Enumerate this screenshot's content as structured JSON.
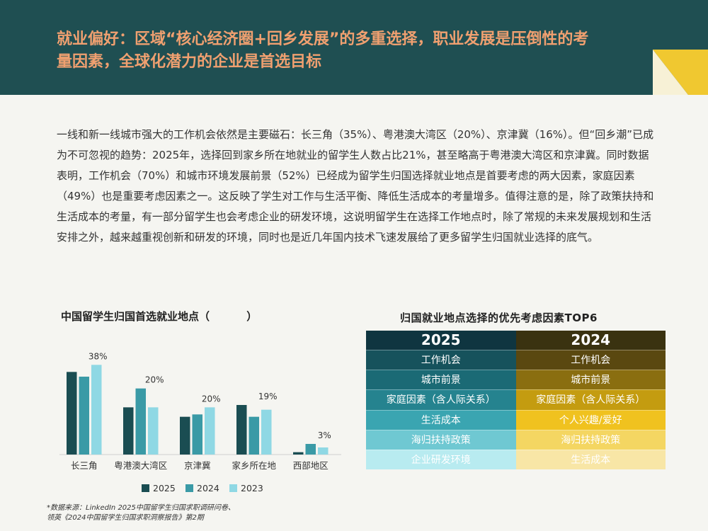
{
  "header": {
    "title": "就业偏好：区域“核心经济圈+回乡发展”的多重选择，职业发展是压倒性的考量因素，全球化潜力的企业是首选目标"
  },
  "paragraph": "一线和新一线城市强大的工作机会依然是主要磁石：长三角（35%）、粤港澳大湾区（20%）、京津冀（16%）。但“回乡潮”已成为不可忽视的趋势：2025年，选择回到家乡所在地就业的留学生人数占比21%，甚至略高于粤港澳大湾区和京津冀。同时数据表明，工作机会（70%）和城市环境发展前景（52%）已经成为留学生归国选择就业地点是首要考虑的两大因素，家庭因素（49%）也是重要考虑因素之一。这反映了学生对工作与生活平衡、降低生活成本的考量增多。值得注意的是，除了政策扶持和生活成本的考量，有一部分留学生也会考虑企业的研发环境，这说明留学生在选择工作地点时，除了常规的未来发展规划和生活安排之外，越来越重视创新和研发的环境，同时也是近几年国内技术飞速发展给了更多留学生归国就业选择的底气。",
  "colors": {
    "header_bg": "#1f4f52",
    "title": "#f0a070",
    "series_2025": "#1a4d52",
    "series_2024": "#3a9aa6",
    "series_2023": "#8fd8e4",
    "accent_yellow": "#f0c830"
  },
  "chart_data": [
    {
      "type": "bar",
      "title": "中国留学生归国首选就业地点（          ）",
      "categories": [
        "长三角",
        "粤港澳大湾区",
        "京津冀",
        "家乡所在地",
        "西部地区"
      ],
      "series": [
        {
          "name": "2025",
          "values": [
            35,
            20,
            16,
            21,
            1
          ]
        },
        {
          "name": "2024",
          "values": [
            33,
            28,
            17,
            16,
            4.5
          ]
        },
        {
          "name": "2023",
          "values": [
            38,
            20,
            20,
            19,
            3
          ]
        }
      ],
      "data_labels": [
        "38%",
        "20%",
        "20%",
        "19%",
        "3%"
      ],
      "ylim": [
        0,
        42
      ],
      "legend": "bottom"
    },
    {
      "type": "table",
      "title": "归国就业地点选择的优先考虑因素TOP6",
      "columns": [
        "2025",
        "2024"
      ],
      "rows": [
        [
          "工作机会",
          "工作机会"
        ],
        [
          "城市前景",
          "城市前景"
        ],
        [
          "家庭因素（含人际关系）",
          "家庭因素（含人际关系）"
        ],
        [
          "生活成本",
          "个人兴趣/爱好"
        ],
        [
          "海归扶持政策",
          "海归扶持政策"
        ],
        [
          "企业研发环境",
          "生活成本"
        ]
      ]
    }
  ],
  "source": [
    "*数据来源：LinkedIn 2025中国留学生归国求职调研问卷、",
    "领英《2024中国留学生归国求职洞察报告》第2期"
  ]
}
